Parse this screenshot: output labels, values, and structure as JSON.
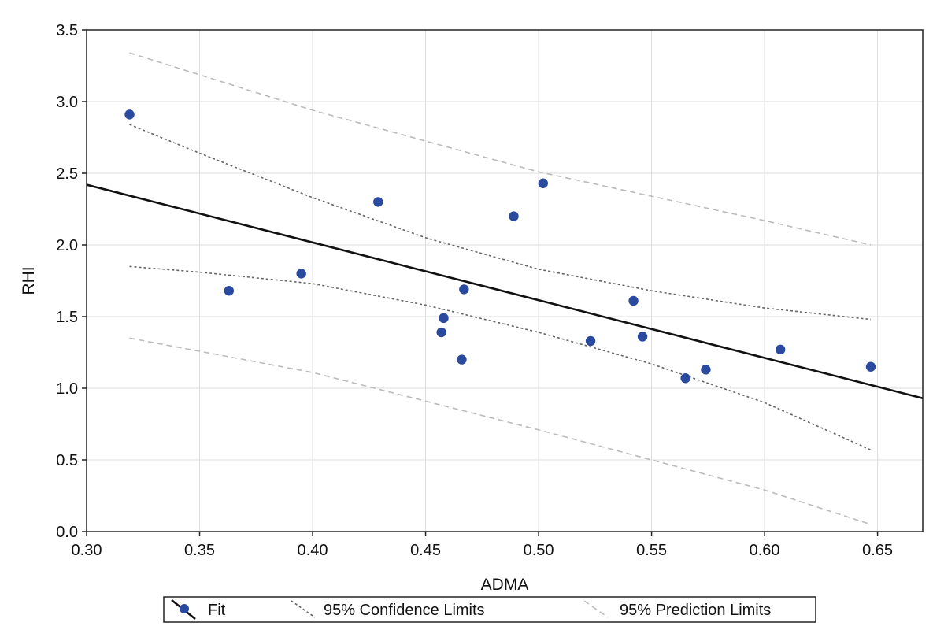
{
  "chart_data": {
    "type": "scatter",
    "title": "",
    "xlabel": "ADMA",
    "ylabel": "RHI",
    "xlim": [
      0.3,
      0.67
    ],
    "ylim": [
      0.0,
      3.5
    ],
    "x_ticks": [
      0.3,
      0.35,
      0.4,
      0.45,
      0.5,
      0.55,
      0.6,
      0.65
    ],
    "x_tick_labels": [
      "0.30",
      "0.35",
      "0.40",
      "0.45",
      "0.50",
      "0.55",
      "0.60",
      "0.65"
    ],
    "y_ticks": [
      0.0,
      0.5,
      1.0,
      1.5,
      2.0,
      2.5,
      3.0,
      3.5
    ],
    "y_tick_labels": [
      "0.0",
      "0.5",
      "1.0",
      "1.5",
      "2.0",
      "2.5",
      "3.0",
      "3.5"
    ],
    "grid": true,
    "legend_position": "bottom",
    "points": [
      {
        "x": 0.319,
        "y": 2.91
      },
      {
        "x": 0.363,
        "y": 1.68
      },
      {
        "x": 0.395,
        "y": 1.8
      },
      {
        "x": 0.429,
        "y": 2.3
      },
      {
        "x": 0.457,
        "y": 1.39
      },
      {
        "x": 0.458,
        "y": 1.49
      },
      {
        "x": 0.466,
        "y": 1.2
      },
      {
        "x": 0.467,
        "y": 1.69
      },
      {
        "x": 0.489,
        "y": 2.2
      },
      {
        "x": 0.502,
        "y": 2.43
      },
      {
        "x": 0.523,
        "y": 1.33
      },
      {
        "x": 0.542,
        "y": 1.61
      },
      {
        "x": 0.546,
        "y": 1.36
      },
      {
        "x": 0.565,
        "y": 1.07
      },
      {
        "x": 0.574,
        "y": 1.13
      },
      {
        "x": 0.607,
        "y": 1.27
      },
      {
        "x": 0.647,
        "y": 1.15
      }
    ],
    "fit_line": [
      {
        "x": 0.3,
        "y": 2.42
      },
      {
        "x": 0.67,
        "y": 0.93
      }
    ],
    "confidence_upper": [
      {
        "x": 0.319,
        "y": 2.84
      },
      {
        "x": 0.35,
        "y": 2.64
      },
      {
        "x": 0.4,
        "y": 2.33
      },
      {
        "x": 0.45,
        "y": 2.05
      },
      {
        "x": 0.5,
        "y": 1.83
      },
      {
        "x": 0.55,
        "y": 1.68
      },
      {
        "x": 0.6,
        "y": 1.56
      },
      {
        "x": 0.647,
        "y": 1.48
      }
    ],
    "confidence_lower": [
      {
        "x": 0.319,
        "y": 1.85
      },
      {
        "x": 0.35,
        "y": 1.81
      },
      {
        "x": 0.4,
        "y": 1.73
      },
      {
        "x": 0.45,
        "y": 1.58
      },
      {
        "x": 0.5,
        "y": 1.39
      },
      {
        "x": 0.55,
        "y": 1.17
      },
      {
        "x": 0.6,
        "y": 0.9
      },
      {
        "x": 0.647,
        "y": 0.57
      }
    ],
    "prediction_upper": [
      {
        "x": 0.319,
        "y": 3.34
      },
      {
        "x": 0.4,
        "y": 2.94
      },
      {
        "x": 0.5,
        "y": 2.51
      },
      {
        "x": 0.6,
        "y": 2.17
      },
      {
        "x": 0.647,
        "y": 2.0
      }
    ],
    "prediction_lower": [
      {
        "x": 0.319,
        "y": 1.35
      },
      {
        "x": 0.4,
        "y": 1.11
      },
      {
        "x": 0.5,
        "y": 0.71
      },
      {
        "x": 0.6,
        "y": 0.29
      },
      {
        "x": 0.647,
        "y": 0.05
      }
    ],
    "legend": {
      "fit_label": "Fit",
      "confidence_label": "95% Confidence Limits",
      "prediction_label": "95% Prediction Limits"
    },
    "colors": {
      "point": "#2a4aa0",
      "fit_line": "#111111",
      "confidence": "#666666",
      "prediction": "#bbbbbb",
      "grid": "#dddddd"
    }
  }
}
